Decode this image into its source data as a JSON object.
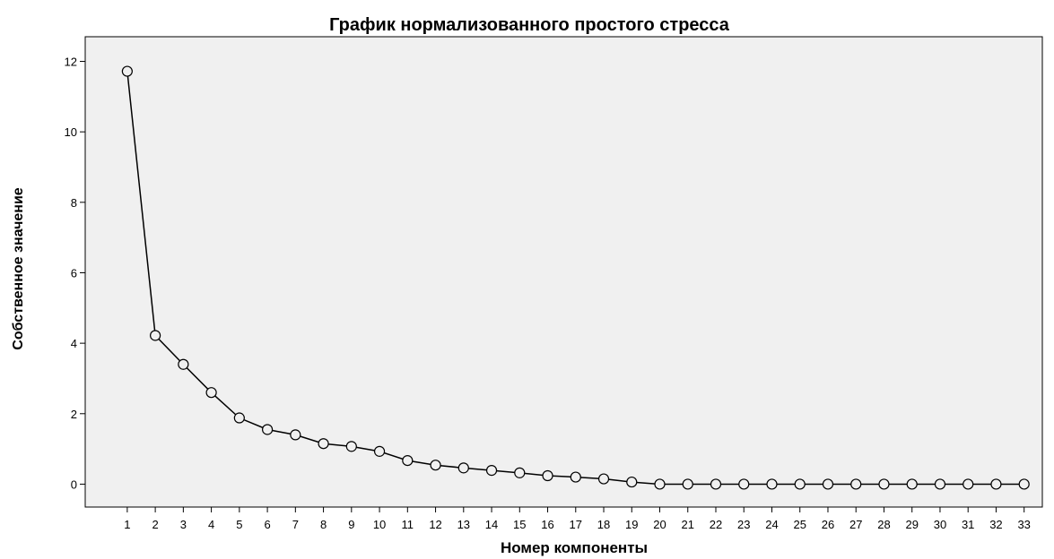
{
  "chart_data": {
    "type": "line",
    "title": "График нормализованного простого стресса",
    "xlabel": "Номер компоненты",
    "ylabel": "Собственное значение",
    "x": [
      1,
      2,
      3,
      4,
      5,
      6,
      7,
      8,
      9,
      10,
      11,
      12,
      13,
      14,
      15,
      16,
      17,
      18,
      19,
      20,
      21,
      22,
      23,
      24,
      25,
      26,
      27,
      28,
      29,
      30,
      31,
      32,
      33
    ],
    "x_tick_labels": [
      "1",
      "2",
      "3",
      "4",
      "5",
      "6",
      "7",
      "8",
      "9",
      "10",
      "11",
      "12",
      "13",
      "14",
      "15",
      "16",
      "17",
      "18",
      "19",
      "20",
      "21",
      "22",
      "23",
      "24",
      "25",
      "26",
      "27",
      "28",
      "29",
      "30",
      "31",
      "32",
      "33"
    ],
    "y": [
      11.72,
      4.22,
      3.4,
      2.6,
      1.88,
      1.55,
      1.4,
      1.15,
      1.07,
      0.93,
      0.67,
      0.54,
      0.46,
      0.39,
      0.32,
      0.24,
      0.2,
      0.15,
      0.06,
      0.0,
      0.0,
      0.0,
      0.0,
      0.0,
      0.0,
      0.0,
      0.0,
      0.0,
      0.0,
      0.0,
      0.0,
      0.0,
      0.0
    ],
    "y_ticks": [
      0,
      2,
      4,
      6,
      8,
      10,
      12
    ],
    "y_tick_labels": [
      "0",
      "2",
      "4",
      "6",
      "8",
      "10",
      "12"
    ],
    "ylim": [
      -0.65,
      12.7
    ],
    "xlim": [
      -0.5,
      33.65
    ],
    "grid": false,
    "marker": "open-circle",
    "colors": {
      "plot_background": "#f0f0f0",
      "line": "#000000",
      "marker_fill": "#f0f0f0"
    }
  }
}
